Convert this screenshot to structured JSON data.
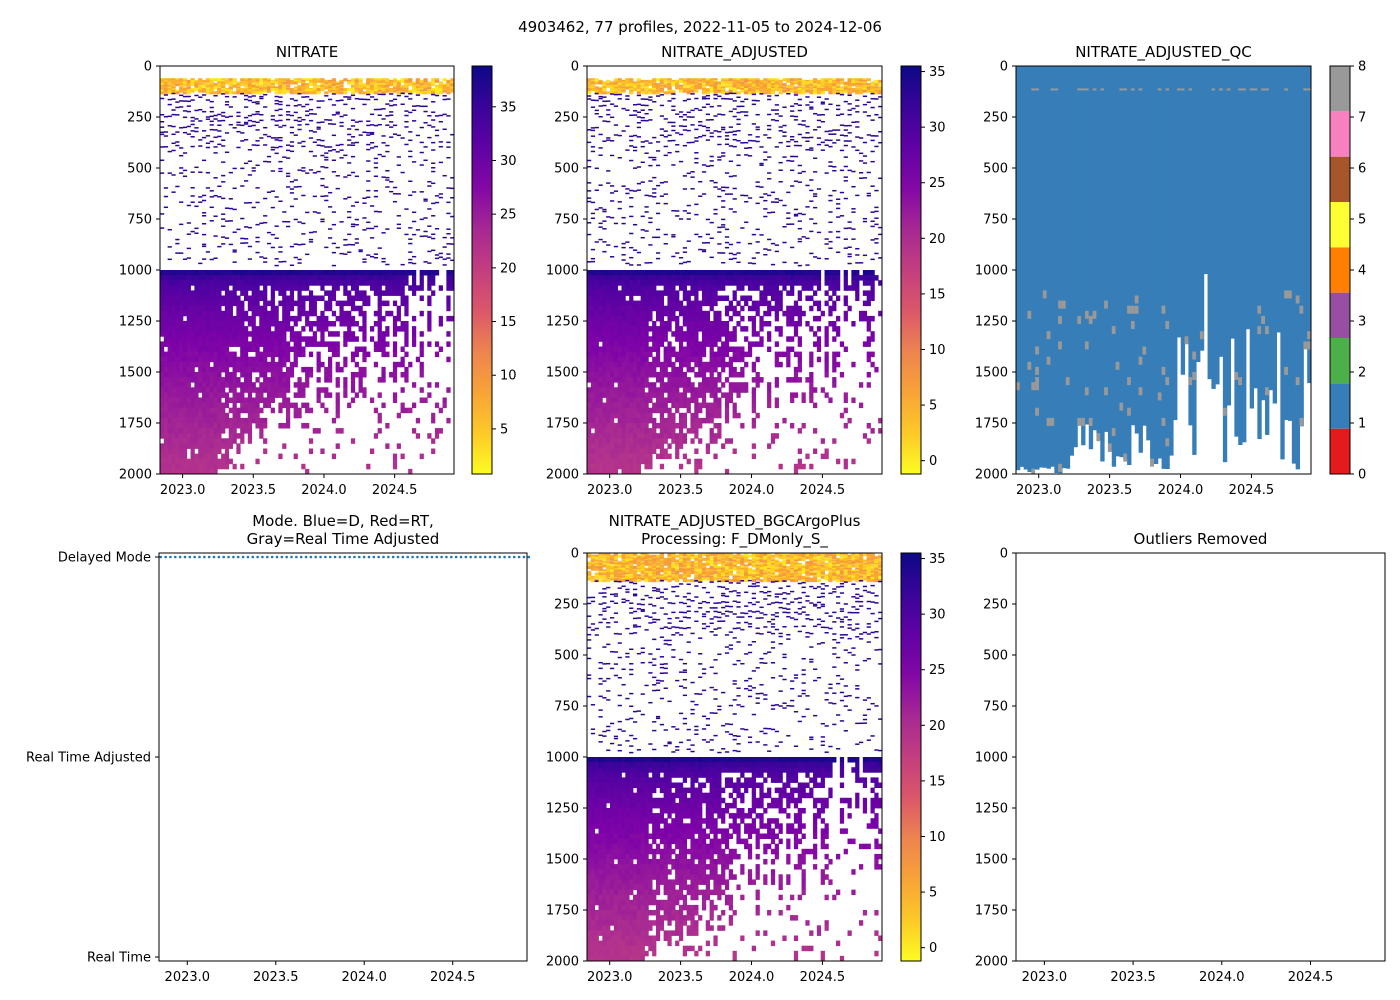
{
  "figure": {
    "suptitle": "4903462, 77 profiles, 2022-11-05 to 2024-12-06"
  },
  "colors": {
    "delayed_mode_points": "#1f77b4",
    "qc_palette": [
      "#e41a1c",
      "#377eb8",
      "#4daf4a",
      "#984ea3",
      "#ff7f00",
      "#ffff33",
      "#a65628",
      "#f781bf",
      "#999999"
    ],
    "plasma_ramp": [
      "#fcfd22",
      "#fdb32a",
      "#f08a4b",
      "#d64a70",
      "#b0318e",
      "#7e03a8",
      "#4c02a1",
      "#0d0887"
    ]
  },
  "chart_data": [
    {
      "id": "nitrate",
      "type": "heatmap",
      "title": "NITRATE",
      "xlabel": "",
      "ylabel": "",
      "xlim": [
        2022.84,
        2024.92
      ],
      "ylim": [
        2000,
        0
      ],
      "xticks": [
        "2023.0",
        "2023.5",
        "2024.0",
        "2024.5"
      ],
      "xtick_values": [
        2023.0,
        2023.5,
        2024.0,
        2024.5
      ],
      "yticks": [
        "0",
        "250",
        "500",
        "750",
        "1000",
        "1250",
        "1500",
        "1750",
        "2000"
      ],
      "ytick_values": [
        0,
        250,
        500,
        750,
        1000,
        1250,
        1500,
        1750,
        2000
      ],
      "colorbar": {
        "cmap": "plasma_r",
        "vmin": 0.8,
        "vmax": 38.8,
        "ticks": [
          "5",
          "10",
          "15",
          "20",
          "25",
          "30",
          "35"
        ],
        "tick_values": [
          5,
          10,
          15,
          20,
          25,
          30,
          35
        ]
      },
      "profiles": 77,
      "surface_layer": {
        "depth": [
          60,
          130
        ],
        "value_range": [
          2,
          10
        ]
      },
      "sparse_layer": {
        "depth": [
          130,
          970
        ],
        "value": 36
      },
      "dense_layer": {
        "depth": [
          1000,
          2000
        ],
        "value_top": 37,
        "value_bottom": 22
      }
    },
    {
      "id": "nitrate_adjusted",
      "type": "heatmap",
      "title": "NITRATE_ADJUSTED",
      "xlabel": "",
      "ylabel": "",
      "xlim": [
        2022.84,
        2024.92
      ],
      "ylim": [
        2000,
        0
      ],
      "xticks": [
        "2023.0",
        "2023.5",
        "2024.0",
        "2024.5"
      ],
      "xtick_values": [
        2023.0,
        2023.5,
        2024.0,
        2024.5
      ],
      "yticks": [
        "0",
        "250",
        "500",
        "750",
        "1000",
        "1250",
        "1500",
        "1750",
        "2000"
      ],
      "ytick_values": [
        0,
        250,
        500,
        750,
        1000,
        1250,
        1500,
        1750,
        2000
      ],
      "colorbar": {
        "cmap": "plasma_r",
        "vmin": -1.2,
        "vmax": 35.5,
        "ticks": [
          "0",
          "5",
          "10",
          "15",
          "20",
          "25",
          "30",
          "35"
        ],
        "tick_values": [
          0,
          5,
          10,
          15,
          20,
          25,
          30,
          35
        ]
      },
      "profiles": 77,
      "surface_layer": {
        "depth": [
          60,
          130
        ],
        "value_range": [
          0,
          8
        ]
      },
      "sparse_layer": {
        "depth": [
          130,
          970
        ],
        "value": 33
      },
      "dense_layer": {
        "depth": [
          1000,
          2000
        ],
        "value_top": 34,
        "value_bottom": 19
      }
    },
    {
      "id": "nitrate_adjusted_qc",
      "type": "heatmap",
      "title": "NITRATE_ADJUSTED_QC",
      "xlabel": "",
      "ylabel": "",
      "xlim": [
        2022.84,
        2024.92
      ],
      "ylim": [
        2000,
        0
      ],
      "xticks": [
        "2023.0",
        "2023.5",
        "2024.0",
        "2024.5"
      ],
      "xtick_values": [
        2023.0,
        2023.5,
        2024.0,
        2024.5
      ],
      "yticks": [
        "0",
        "250",
        "500",
        "750",
        "1000",
        "1250",
        "1500",
        "1750",
        "2000"
      ],
      "ytick_values": [
        0,
        250,
        500,
        750,
        1000,
        1250,
        1500,
        1750,
        2000
      ],
      "colorbar": {
        "cmap": "qc_categorical",
        "vmin": 0,
        "vmax": 8,
        "ticks": [
          "0",
          "1",
          "2",
          "3",
          "4",
          "5",
          "6",
          "7",
          "8"
        ],
        "tick_values": [
          0,
          1,
          2,
          3,
          4,
          5,
          6,
          7,
          8
        ]
      },
      "dominant_flag": 1,
      "secondary_flag": 8
    },
    {
      "id": "mode",
      "type": "scatter",
      "title": "Mode. Blue=D, Red=RT,\nGray=Real Time Adjusted",
      "xlabel": "",
      "ylabel": "",
      "xlim": [
        2022.84,
        2024.92
      ],
      "ylim": [
        -0.02,
        2.02
      ],
      "xticks": [
        "2023.0",
        "2023.5",
        "2024.0",
        "2024.5"
      ],
      "xtick_values": [
        2023.0,
        2023.5,
        2024.0,
        2024.5
      ],
      "yticks": [
        "Real Time",
        "Real Time Adjusted",
        "Delayed Mode"
      ],
      "ytick_values": [
        0,
        1,
        2
      ],
      "series": [
        {
          "name": "Delayed Mode",
          "y": 2,
          "x_start": 2022.85,
          "x_end": 2024.93,
          "count": 77
        }
      ]
    },
    {
      "id": "nitrate_bgcargoplus",
      "type": "heatmap",
      "title": "NITRATE_ADJUSTED_BGCArgoPlus\nProcessing: F_DMonly_S_",
      "xlabel": "",
      "ylabel": "",
      "xlim": [
        2022.84,
        2024.92
      ],
      "ylim": [
        2000,
        0
      ],
      "xticks": [
        "2023.0",
        "2023.5",
        "2024.0",
        "2024.5"
      ],
      "xtick_values": [
        2023.0,
        2023.5,
        2024.0,
        2024.5
      ],
      "yticks": [
        "0",
        "250",
        "500",
        "750",
        "1000",
        "1250",
        "1500",
        "1750",
        "2000"
      ],
      "ytick_values": [
        0,
        250,
        500,
        750,
        1000,
        1250,
        1500,
        1750,
        2000
      ],
      "colorbar": {
        "cmap": "plasma_r",
        "vmin": -1.2,
        "vmax": 35.5,
        "ticks": [
          "0",
          "5",
          "10",
          "15",
          "20",
          "25",
          "30",
          "35"
        ],
        "tick_values": [
          0,
          5,
          10,
          15,
          20,
          25,
          30,
          35
        ]
      },
      "profiles": 77,
      "surface_layer": {
        "depth": [
          0,
          130
        ],
        "value_range": [
          0,
          8
        ]
      },
      "sparse_layer": {
        "depth": [
          130,
          970
        ],
        "value": 33
      },
      "dense_layer": {
        "depth": [
          1000,
          2000
        ],
        "value_top": 34,
        "value_bottom": 19
      }
    },
    {
      "id": "outliers",
      "type": "scatter",
      "title": "Outliers Removed",
      "xlabel": "",
      "ylabel": "",
      "xlim": [
        2022.84,
        2024.92
      ],
      "ylim": [
        2000,
        0
      ],
      "xticks": [
        "2023.0",
        "2023.5",
        "2024.0",
        "2024.5"
      ],
      "xtick_values": [
        2023.0,
        2023.5,
        2024.0,
        2024.5
      ],
      "yticks": [
        "0",
        "250",
        "500",
        "750",
        "1000",
        "1250",
        "1500",
        "1750",
        "2000"
      ],
      "ytick_values": [
        0,
        250,
        500,
        750,
        1000,
        1250,
        1500,
        1750,
        2000
      ],
      "series": []
    }
  ]
}
